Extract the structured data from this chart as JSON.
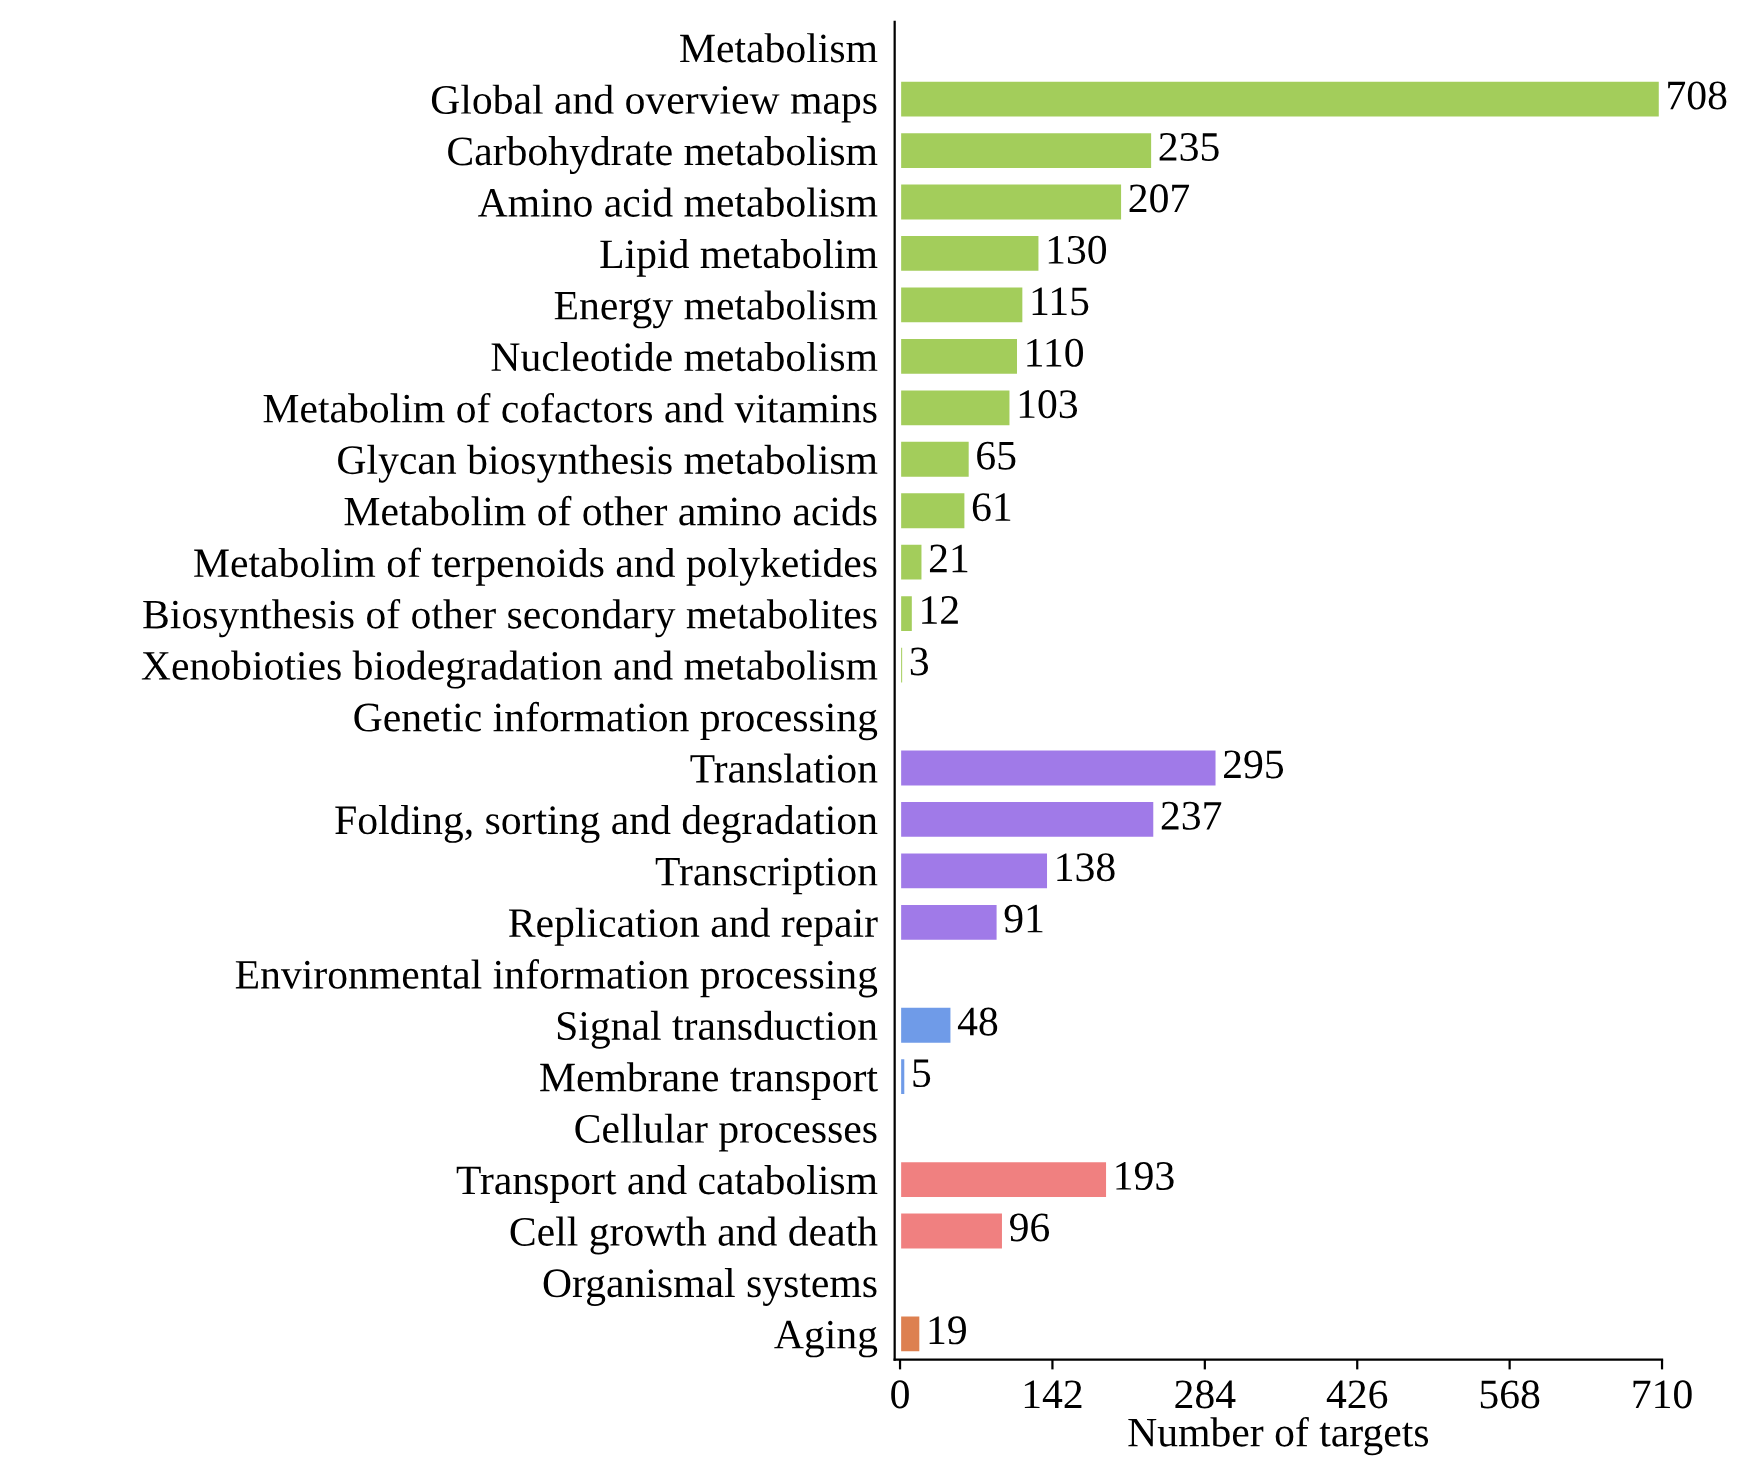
{
  "chart_data": {
    "type": "bar",
    "orientation": "horizontal",
    "xlabel": "Number of targets",
    "categories": [
      "Metabolism",
      "Global and overview maps",
      "Carbohydrate metabolism",
      "Amino acid metabolism",
      "Lipid metabolim",
      "Energy metabolism",
      "Nucleotide metabolism",
      "Metabolim of cofactors and vitamins",
      "Glycan biosynthesis metabolism",
      "Metabolim of other amino acids",
      "Metabolim of terpenoids and polyketides",
      "Biosynthesis of other secondary metabolites",
      "Xenobioties biodegradation and metabolism",
      "Genetic information processing",
      "Translation",
      "Folding, sorting and degradation",
      "Transcription",
      "Replication and repair",
      "Environmental information processing",
      "Signal transduction",
      "Membrane transport",
      "Cellular processes",
      "Transport and catabolism",
      "Cell growth and death",
      "Organismal systems",
      "Aging"
    ],
    "values": [
      null,
      708,
      235,
      207,
      130,
      115,
      110,
      103,
      65,
      61,
      21,
      12,
      3,
      null,
      295,
      237,
      138,
      91,
      null,
      48,
      5,
      null,
      193,
      96,
      null,
      19
    ],
    "colors": [
      null,
      "#a3cd5b",
      "#a3cd5b",
      "#a3cd5b",
      "#a3cd5b",
      "#a3cd5b",
      "#a3cd5b",
      "#a3cd5b",
      "#a3cd5b",
      "#a3cd5b",
      "#a3cd5b",
      "#a3cd5b",
      "#a3cd5b",
      null,
      "#a07ae8",
      "#a07ae8",
      "#a07ae8",
      "#a07ae8",
      null,
      "#6f9be8",
      "#6f9be8",
      null,
      "#f08080",
      "#f08080",
      null,
      "#dd8050"
    ],
    "xlim": [
      -5,
      710
    ],
    "xticks": [
      0,
      142,
      284,
      426,
      568,
      710
    ],
    "data_labels": true,
    "grid": false
  }
}
